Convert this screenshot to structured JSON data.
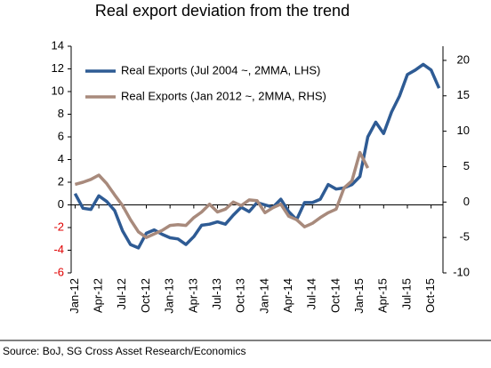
{
  "chart_data": {
    "type": "line",
    "title": "Real export deviation from the trend",
    "source": "Source: BoJ, SG Cross Asset Research/Economics",
    "categories": [
      "Jan-12",
      null,
      null,
      "Apr-12",
      null,
      null,
      "Jul-12",
      null,
      null,
      "Oct-12",
      null,
      null,
      "Jan-13",
      null,
      null,
      "Apr-13",
      null,
      null,
      "Jul-13",
      null,
      null,
      "Oct-13",
      null,
      null,
      "Jan-14",
      null,
      null,
      "Apr-14",
      null,
      null,
      "Jul-14",
      null,
      null,
      "Oct-14",
      null,
      null,
      "Jan-15",
      null,
      null,
      "Apr-15",
      null,
      null,
      "Jul-15",
      null,
      null,
      "Oct-15",
      null
    ],
    "series": [
      {
        "name": "Real Exports (Jul 2004 ~, 2MMA,  LHS)",
        "color": "#2e5b94",
        "values": [
          1.0,
          -0.3,
          -0.4,
          0.8,
          0.3,
          -0.5,
          -2.3,
          -3.5,
          -3.8,
          -2.5,
          -2.2,
          -2.6,
          -2.9,
          -3.0,
          -3.5,
          -2.8,
          -1.8,
          -1.7,
          -1.5,
          -1.7,
          -0.9,
          -0.2,
          -0.6,
          0.2,
          0.0,
          -0.2,
          0.5,
          -0.6,
          -1.3,
          0.2,
          0.2,
          0.5,
          1.8,
          1.4,
          1.5,
          1.8,
          2.5,
          6.0,
          7.3,
          6.3,
          8.2,
          9.6,
          11.5,
          11.9,
          12.4,
          11.9,
          10.3
        ]
      },
      {
        "name": "Real Exports (Jan 2012 ~, 2MMA, RHS)",
        "color": "#a88a7c",
        "axis": "y2",
        "values": [
          2.5,
          2.8,
          3.2,
          3.8,
          2.6,
          1.0,
          -0.5,
          -2.5,
          -4.2,
          -5.0,
          -4.5,
          -4.0,
          -3.3,
          -3.2,
          -3.3,
          -2.2,
          -1.4,
          -0.3,
          -1.4,
          -1.0,
          0.0,
          -0.5,
          0.3,
          0.2,
          -1.5,
          -0.8,
          -0.3,
          -2.0,
          -2.5,
          -3.5,
          -3.0,
          -2.2,
          -1.5,
          -1.0,
          2.0,
          3.0,
          7.0,
          4.8,
          null,
          null,
          null,
          null,
          null,
          null,
          null,
          null,
          null
        ]
      }
    ],
    "ylim": [
      -6,
      14
    ],
    "yticks": [
      -6,
      -4,
      -2,
      0,
      2,
      4,
      6,
      8,
      10,
      12,
      14
    ],
    "y2lim": [
      -10,
      22
    ],
    "y2ticks": [
      -10,
      -5,
      0,
      5,
      10,
      15,
      20
    ],
    "negative_tick_color": "#e00000",
    "grid": false,
    "legend": "upper left"
  }
}
